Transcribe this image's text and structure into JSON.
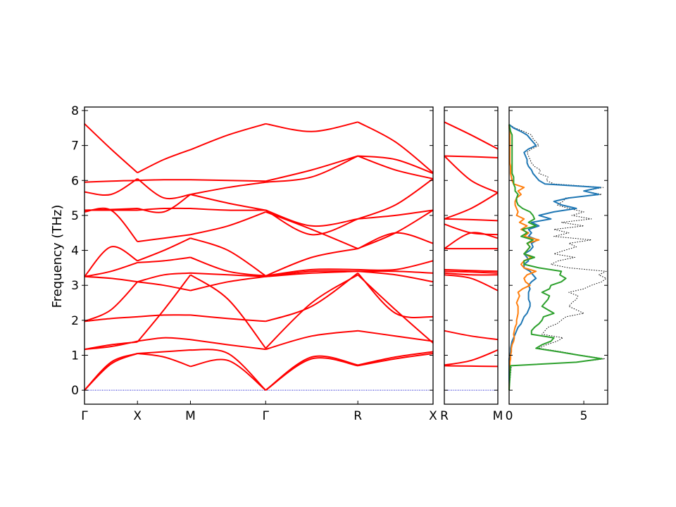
{
  "chart_data": {
    "type": "line",
    "ylabel": "Frequency (THz)",
    "ylim": [
      -0.4,
      8.1
    ],
    "yticks": [
      "0",
      "1",
      "2",
      "3",
      "4",
      "5",
      "6",
      "7",
      "8"
    ],
    "zero_line_color": "#0000cc",
    "band_color": "#ff0000",
    "panels": [
      {
        "name": "band-structure-main",
        "path_labels": [
          "Γ",
          "X",
          "M",
          "Γ",
          "R",
          "X"
        ],
        "segment_points": [
          0,
          0.5,
          1.0,
          1.71,
          2.58,
          3.29
        ],
        "x": [
          0,
          0.25,
          0.5,
          0.75,
          1.0,
          1.355,
          1.71,
          2.145,
          2.58,
          2.935,
          3.29
        ],
        "series": [
          {
            "values": [
              0.0,
              0.75,
              1.05,
              0.95,
              0.68,
              0.85,
              0.0,
              0.9,
              0.7,
              0.9,
              1.05
            ]
          },
          {
            "values": [
              0.0,
              0.8,
              1.05,
              1.1,
              1.15,
              1.05,
              0.0,
              0.95,
              0.72,
              0.95,
              1.1
            ]
          },
          {
            "values": [
              1.17,
              1.25,
              1.4,
              1.5,
              1.45,
              1.3,
              1.17,
              1.55,
              1.7,
              1.55,
              1.4
            ]
          },
          {
            "values": [
              1.17,
              1.3,
              1.38,
              2.3,
              3.3,
              2.6,
              1.2,
              2.5,
              3.3,
              2.3,
              1.35
            ]
          },
          {
            "values": [
              1.97,
              2.05,
              2.1,
              2.15,
              2.15,
              2.05,
              1.97,
              2.4,
              3.35,
              2.2,
              2.1
            ]
          },
          {
            "values": [
              1.97,
              2.3,
              3.1,
              3.0,
              2.85,
              3.1,
              3.25,
              3.35,
              3.4,
              3.3,
              3.1
            ]
          },
          {
            "values": [
              3.25,
              3.2,
              3.1,
              3.3,
              3.35,
              3.3,
              3.25,
              3.4,
              3.4,
              3.4,
              3.35
            ]
          },
          {
            "values": [
              3.25,
              3.4,
              3.65,
              3.7,
              3.8,
              3.4,
              3.27,
              3.45,
              3.45,
              3.45,
              3.7
            ]
          },
          {
            "values": [
              3.25,
              4.1,
              3.7,
              4.0,
              4.35,
              4.0,
              3.27,
              3.8,
              4.05,
              4.5,
              4.2
            ]
          },
          {
            "values": [
              5.1,
              5.15,
              4.25,
              4.35,
              4.45,
              4.7,
              5.1,
              4.6,
              4.05,
              4.5,
              5.15
            ]
          },
          {
            "values": [
              5.15,
              5.15,
              5.15,
              5.2,
              5.2,
              5.15,
              5.15,
              4.45,
              4.9,
              5.0,
              5.15
            ]
          },
          {
            "values": [
              5.15,
              5.17,
              5.2,
              5.1,
              5.6,
              5.35,
              5.15,
              4.7,
              4.9,
              5.3,
              6.05
            ]
          },
          {
            "values": [
              5.67,
              5.6,
              6.05,
              5.5,
              5.6,
              5.8,
              5.95,
              6.1,
              6.7,
              6.3,
              6.05
            ]
          },
          {
            "values": [
              5.95,
              5.98,
              6.0,
              6.02,
              6.02,
              6.0,
              5.98,
              6.3,
              6.7,
              6.6,
              6.2
            ]
          },
          {
            "values": [
              7.62,
              6.9,
              6.22,
              6.6,
              6.88,
              7.3,
              7.62,
              7.4,
              7.67,
              7.1,
              6.22
            ]
          }
        ]
      },
      {
        "name": "band-structure-rm",
        "path_labels": [
          "R",
          "M"
        ],
        "segment_points": [
          0,
          1
        ],
        "x": [
          0,
          0.5,
          1.0
        ],
        "series": [
          {
            "values": [
              0.7,
              0.69,
              0.68
            ]
          },
          {
            "values": [
              0.72,
              0.85,
              1.15
            ]
          },
          {
            "values": [
              1.7,
              1.55,
              1.45
            ]
          },
          {
            "values": [
              3.3,
              3.2,
              2.85
            ]
          },
          {
            "values": [
              3.35,
              3.3,
              3.3
            ]
          },
          {
            "values": [
              3.4,
              3.38,
              3.35
            ]
          },
          {
            "values": [
              3.45,
              3.42,
              3.4
            ]
          },
          {
            "values": [
              4.05,
              4.05,
              4.05
            ]
          },
          {
            "values": [
              4.05,
              4.5,
              4.35
            ]
          },
          {
            "values": [
              4.75,
              4.5,
              4.45
            ]
          },
          {
            "values": [
              4.9,
              4.88,
              4.85
            ]
          },
          {
            "values": [
              4.9,
              5.2,
              5.65
            ]
          },
          {
            "values": [
              6.7,
              6.0,
              5.65
            ]
          },
          {
            "values": [
              6.7,
              6.68,
              6.65
            ]
          },
          {
            "values": [
              7.67,
              7.3,
              6.9
            ]
          }
        ]
      }
    ],
    "dos_panel": {
      "xlim": [
        0,
        6.6
      ],
      "xticks": [
        "0",
        "5"
      ],
      "freq": [
        0,
        0.7,
        0.8,
        0.9,
        1.0,
        1.1,
        1.2,
        1.3,
        1.4,
        1.5,
        1.6,
        1.7,
        1.8,
        1.9,
        2.0,
        2.1,
        2.2,
        2.3,
        2.4,
        2.5,
        2.6,
        2.7,
        2.8,
        2.9,
        3.0,
        3.1,
        3.2,
        3.3,
        3.4,
        3.5,
        3.6,
        3.7,
        3.8,
        3.9,
        4.0,
        4.1,
        4.2,
        4.3,
        4.4,
        4.5,
        4.6,
        4.7,
        4.8,
        4.9,
        5.0,
        5.1,
        5.2,
        5.3,
        5.4,
        5.5,
        5.6,
        5.7,
        5.8,
        5.9,
        6.0,
        6.1,
        6.2,
        6.3,
        6.4,
        6.5,
        6.6,
        6.7,
        6.8,
        6.9,
        7.0,
        7.1,
        7.2,
        7.3,
        7.4,
        7.5,
        7.6
      ],
      "series": [
        {
          "name": "",
          "color": "#000000",
          "style": "dotted",
          "values": [
            0,
            0.15,
            4.6,
            6.4,
            4.8,
            3.5,
            2.0,
            2.5,
            3.2,
            3.6,
            2.2,
            2.4,
            2.6,
            3.2,
            3.5,
            3.8,
            5.0,
            4.5,
            4.0,
            4.2,
            4.5,
            4.6,
            4.0,
            5.0,
            5.5,
            6.2,
            6.5,
            6.0,
            6.5,
            4.0,
            2.8,
            3.3,
            4.4,
            3.0,
            3.7,
            4.5,
            4.0,
            5.5,
            3.0,
            4.0,
            3.0,
            5.0,
            3.5,
            5.5,
            4.2,
            5.0,
            4.0,
            3.2,
            3.6,
            3.8,
            6.2,
            5.0,
            6.3,
            3.0,
            2.5,
            2.6,
            2.0,
            2.1,
            1.7,
            1.5,
            1.4,
            1.3,
            1.2,
            1.5,
            2.0,
            1.8,
            1.6,
            1.5,
            1.0,
            0.4,
            0
          ]
        },
        {
          "name": "",
          "color": "#1f77b4",
          "style": "solid",
          "values": [
            0,
            0.0,
            0.0,
            0.0,
            0.05,
            0.1,
            0.1,
            0.15,
            0.2,
            0.3,
            0.4,
            0.5,
            0.6,
            0.8,
            0.9,
            1.0,
            1.2,
            1.3,
            1.4,
            1.4,
            1.3,
            1.3,
            1.3,
            1.4,
            1.3,
            1.5,
            1.8,
            1.6,
            1.4,
            1.0,
            1.0,
            1.3,
            1.2,
            1.0,
            1.4,
            1.6,
            1.5,
            1.9,
            1.3,
            1.5,
            1.3,
            2.0,
            1.5,
            2.8,
            2.0,
            3.0,
            4.5,
            3.5,
            3.0,
            4.0,
            6.0,
            5.0,
            6.1,
            2.4,
            2.0,
            1.8,
            1.6,
            1.5,
            1.3,
            1.2,
            1.2,
            1.1,
            1.0,
            1.3,
            1.8,
            1.6,
            1.4,
            1.2,
            0.8,
            0.3,
            0
          ]
        },
        {
          "name": "",
          "color": "#ff7f0e",
          "style": "solid",
          "values": [
            0,
            0.05,
            0.05,
            0.1,
            0.1,
            0.15,
            0.15,
            0.2,
            0.3,
            0.35,
            0.3,
            0.35,
            0.4,
            0.5,
            0.5,
            0.55,
            0.6,
            0.6,
            0.6,
            0.5,
            0.6,
            0.7,
            0.6,
            0.9,
            1.4,
            1.1,
            1.0,
            1.2,
            1.8,
            1.0,
            0.8,
            1.0,
            1.5,
            1.0,
            1.2,
            1.4,
            1.2,
            2.0,
            1.0,
            1.3,
            0.8,
            1.2,
            0.7,
            1.0,
            0.5,
            0.6,
            0.5,
            0.4,
            0.4,
            0.5,
            0.8,
            0.6,
            1.0,
            0.3,
            0.2,
            0.15,
            0.1,
            0.1,
            0.1,
            0.05,
            0.05,
            0.05,
            0.05,
            0.05,
            0.05,
            0.05,
            0.05,
            0.05,
            0.03,
            0.01,
            0
          ]
        },
        {
          "name": "",
          "color": "#2ca02c",
          "style": "solid",
          "values": [
            0,
            0.1,
            4.5,
            6.2,
            4.7,
            3.3,
            1.8,
            2.2,
            2.8,
            3.0,
            1.5,
            1.5,
            1.7,
            2.0,
            2.2,
            2.3,
            3.0,
            2.6,
            2.2,
            2.4,
            2.6,
            2.7,
            2.2,
            2.7,
            2.8,
            3.5,
            3.8,
            3.4,
            3.5,
            2.0,
            1.0,
            1.0,
            1.7,
            1.0,
            1.2,
            1.4,
            1.2,
            1.6,
            0.8,
            1.2,
            0.9,
            1.8,
            1.3,
            1.7,
            1.6,
            1.4,
            0.9,
            0.6,
            0.5,
            0.5,
            0.6,
            0.4,
            0.4,
            0.3,
            0.3,
            0.3,
            0.2,
            0.2,
            0.2,
            0.2,
            0.2,
            0.2,
            0.2,
            0.2,
            0.2,
            0.2,
            0.2,
            0.2,
            0.1,
            0.05,
            0
          ]
        }
      ]
    }
  }
}
